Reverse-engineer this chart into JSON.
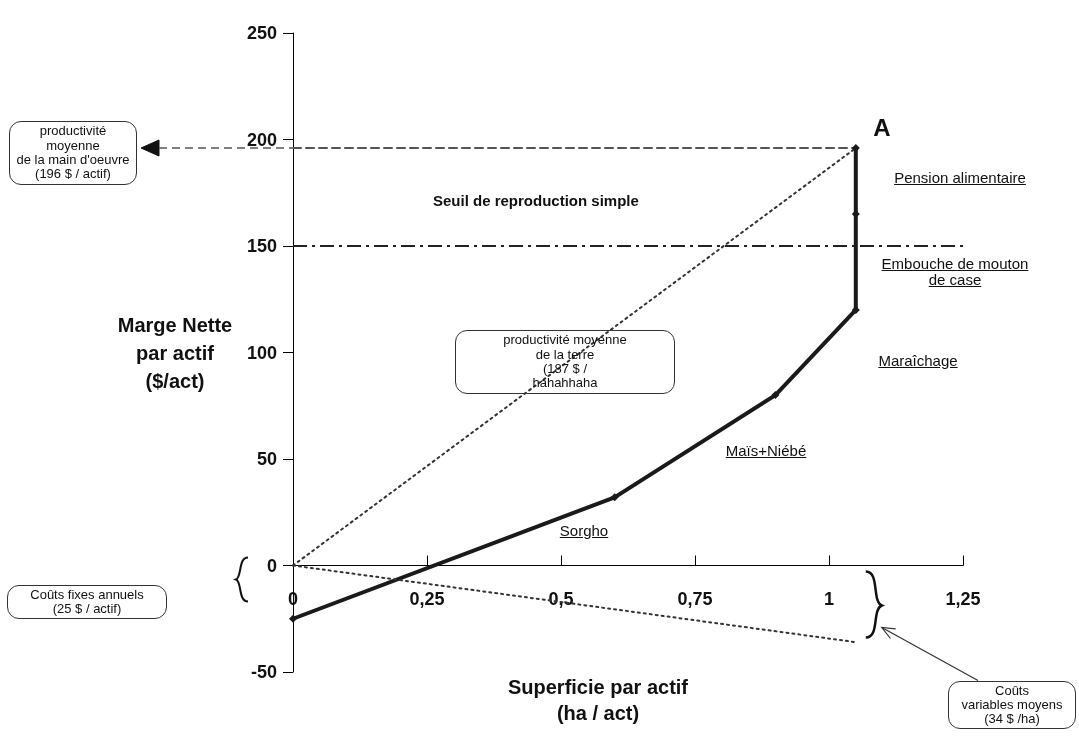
{
  "chart_data": {
    "type": "line",
    "xlabel": "Superficie par actif\n(ha / act)",
    "ylabel": "Marge Nette\npar actif\n($/act)",
    "xlim": [
      0,
      1.25
    ],
    "xticks": [
      0,
      {
        "value": 0.25,
        "label": "0,25"
      },
      {
        "value": 0.5,
        "label": "0,5"
      },
      {
        "value": 0.75,
        "label": "0,75"
      },
      1,
      {
        "value": 1.25,
        "label": "1,25"
      }
    ],
    "ylim": [
      -50,
      250
    ],
    "yticks": [
      -50,
      0,
      50,
      100,
      150,
      200,
      250
    ],
    "grid": false,
    "series": [
      {
        "color": "#1a1a1a",
        "x": [
          0,
          0.6,
          0.9,
          1.05,
          1.05,
          1.05
        ],
        "values": [
          -25,
          32,
          80,
          120,
          165,
          196
        ],
        "marker": "diamond",
        "line_style": "solid"
      },
      {
        "color": "#333333",
        "x": [
          0,
          1.05
        ],
        "values": [
          0,
          196
        ],
        "marker": "none",
        "line_style": "dotted"
      },
      {
        "color": "#333333",
        "x": [
          0,
          1.05
        ],
        "values": [
          0,
          -36
        ],
        "marker": "none",
        "line_style": "dotted"
      },
      {
        "color": "#555555",
        "x": [
          0,
          1.05
        ],
        "values": [
          196,
          196
        ],
        "marker": "none",
        "line_style": "dashed"
      }
    ],
    "ref_lines": [
      {
        "axis": "y",
        "value": 150,
        "label": "Seuil de reproduction simple",
        "color": "#222222",
        "line_style": "dashdot"
      }
    ],
    "annotations": [
      "A",
      "Pension alimentaire",
      "Embouche de mouton\nde case",
      "Maraîchage",
      "Maïs+Niébé",
      "Sorgho",
      "productivité moyenne\nde la terre\n(187 $ /\nhahahhaha",
      "productivité\nmoyenne\nde la main d'oeuvre\n(196 $ / actif)",
      "Coûts fixes annuels\n(25 $ / actif)",
      "Coûts\nvariables moyens\n(34 $ /ha)"
    ]
  }
}
